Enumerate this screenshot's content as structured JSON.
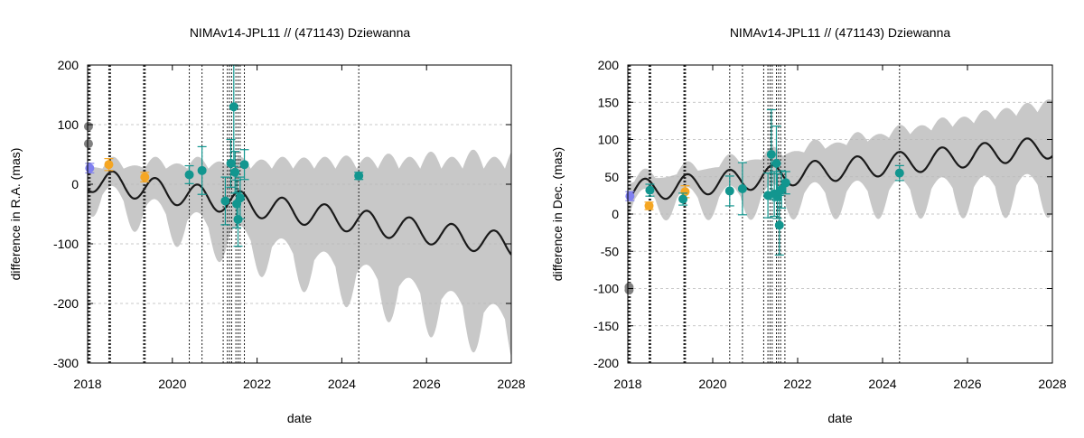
{
  "colors": {
    "band": "#c8c8c8",
    "curve": "#1a1a1a",
    "grid": "#b8b8b8",
    "vline": "#222222",
    "teal": "#12968f",
    "orange": "#f5a623",
    "purple": "#8080f0",
    "gray_pt": "#808080"
  },
  "chart_data": [
    {
      "type": "scatter",
      "title": "NIMAv14-JPL11 // (471143) Dziewanna",
      "xlabel": "date",
      "ylabel": "difference in R.A. (mas)",
      "xlim": [
        2018,
        2028
      ],
      "ylim": [
        -300,
        200
      ],
      "x_ticks": [
        "2018",
        "2020",
        "2022",
        "2024",
        "2026",
        "2028"
      ],
      "y_ticks": [
        "200",
        "100",
        "0",
        "-100",
        "-200",
        "-300"
      ],
      "y_tick_values": [
        200,
        100,
        0,
        -100,
        -200,
        -300
      ],
      "model": {
        "offset": 8,
        "trend": -11,
        "amp": 20,
        "period": 1.0,
        "phase_peak": 2018.6,
        "band_base": 18,
        "band_growth": 11,
        "band_amp": 22
      },
      "observation_dates": [
        2018.0,
        2018.02,
        2018.04,
        2018.06,
        2018.5,
        2018.52,
        2018.54,
        2019.32,
        2019.34,
        2019.36,
        2020.4,
        2020.7,
        2021.2,
        2021.3,
        2021.35,
        2021.4,
        2021.5,
        2021.55,
        2021.6,
        2021.7,
        2024.4
      ],
      "series": [
        {
          "name": "gray",
          "color": "#808080",
          "x": [
            2018.02,
            2018.02
          ],
          "y": [
            97,
            68
          ],
          "err": [
            0,
            0
          ]
        },
        {
          "name": "purple",
          "color": "#8080f0",
          "x": [
            2018.05
          ],
          "y": [
            27
          ],
          "err": [
            8
          ]
        },
        {
          "name": "orange",
          "color": "#f5a623",
          "x": [
            2018.5,
            2019.35
          ],
          "y": [
            33,
            12
          ],
          "err": [
            10,
            8
          ]
        },
        {
          "name": "teal",
          "color": "#12968f",
          "x": [
            2020.4,
            2020.7,
            2021.25,
            2021.38,
            2021.45,
            2021.48,
            2021.52,
            2021.55,
            2021.6,
            2021.7,
            2024.4
          ],
          "y": [
            16,
            23,
            -28,
            35,
            130,
            20,
            -33,
            -59,
            -23,
            33,
            14
          ],
          "err": [
            15,
            40,
            40,
            40,
            100,
            35,
            40,
            45,
            35,
            25,
            6
          ]
        }
      ]
    },
    {
      "type": "scatter",
      "title": "NIMAv14-JPL11 // (471143) Dziewanna",
      "xlabel": "date",
      "ylabel": "difference in Dec. (mas)",
      "xlim": [
        2018,
        2028
      ],
      "ylim": [
        -200,
        200
      ],
      "x_ticks": [
        "2018",
        "2020",
        "2022",
        "2024",
        "2026",
        "2028"
      ],
      "y_ticks": [
        "200",
        "150",
        "100",
        "50",
        "0",
        "-50",
        "-100",
        "-150",
        "-200"
      ],
      "y_tick_values": [
        200,
        150,
        100,
        50,
        0,
        -50,
        -100,
        -150,
        -200
      ],
      "model": {
        "offset": 30,
        "trend": 6,
        "amp": 15,
        "period": 1.0,
        "phase_peak": 2018.4,
        "band_base": 12,
        "band_growth": 3.8,
        "band_amp": 12
      },
      "observation_dates": [
        2018.0,
        2018.02,
        2018.04,
        2018.06,
        2018.5,
        2018.52,
        2018.54,
        2019.32,
        2019.34,
        2019.36,
        2020.4,
        2020.7,
        2021.2,
        2021.3,
        2021.35,
        2021.4,
        2021.5,
        2021.55,
        2021.6,
        2021.7,
        2024.4
      ],
      "series": [
        {
          "name": "gray",
          "color": "#808080",
          "x": [
            2018.03,
            2018.03
          ],
          "y": [
            -98,
            -102
          ],
          "err": [
            0,
            0
          ]
        },
        {
          "name": "purple",
          "color": "#8080f0",
          "x": [
            2018.05
          ],
          "y": [
            24
          ],
          "err": [
            6
          ]
        },
        {
          "name": "orange",
          "color": "#f5a623",
          "x": [
            2018.5,
            2019.35
          ],
          "y": [
            11,
            30
          ],
          "err": [
            5,
            8
          ]
        },
        {
          "name": "teal",
          "color": "#12968f",
          "x": [
            2018.52,
            2019.3,
            2020.4,
            2020.7,
            2021.3,
            2021.38,
            2021.45,
            2021.5,
            2021.52,
            2021.57,
            2021.62,
            2021.72,
            2024.4
          ],
          "y": [
            32,
            20,
            31,
            34,
            25,
            80,
            27,
            68,
            24,
            -15,
            33,
            42,
            55
          ],
          "err": [
            8,
            8,
            20,
            35,
            30,
            60,
            30,
            50,
            30,
            40,
            25,
            15,
            10
          ]
        }
      ]
    }
  ]
}
